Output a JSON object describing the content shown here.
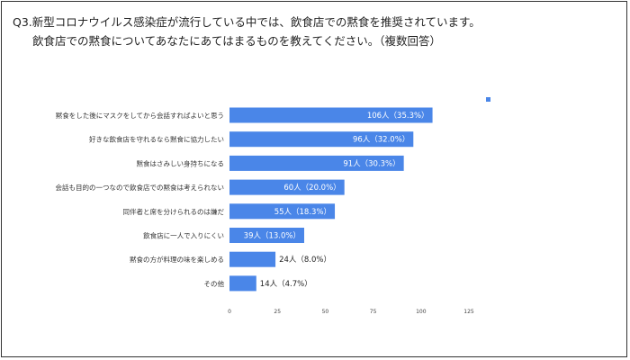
{
  "question": {
    "line1": "Q3.新型コロナウイルス感染症が流行している中では、飲食店での黙食を推奨されています。",
    "line2": "飲食店での黙食についてあなたにあてはまるものを教えてください。（複数回答）"
  },
  "chart_data": {
    "type": "bar",
    "orientation": "horizontal",
    "title": "Q3.新型コロナウイルス感染症が流行している中では、飲食店での黙食を推奨されています。 飲食店での黙食についてあなたにあてはまるものを教えてください。（複数回答）",
    "categories": [
      "黙食をした後にマスクをしてから会話すればよいと思う",
      "好きな飲食店を守れるなら黙食に協力したい",
      "黙食はさみしい身持ちになる",
      "会話も目的の一つなので飲食店での黙食は考えられない",
      "同伴者と席を分けられるのは嫌だ",
      "飲食店に一人で入りにくい",
      "黙食の方が料理の味を楽しめる",
      "その他"
    ],
    "values": [
      106,
      96,
      91,
      60,
      55,
      39,
      24,
      14
    ],
    "data_labels": [
      "106人（35.3%）",
      "96人（32.0%）",
      "91人（30.3%）",
      "60人（20.0%）",
      "55人（18.3%）",
      "39人（13.0%）",
      "24人（8.0%）",
      "14人（4.7%）"
    ],
    "xlim": [
      0,
      125
    ],
    "xticks": [
      0,
      25,
      50,
      75,
      100,
      125
    ],
    "xlabel": "",
    "ylabel": "",
    "grid": false,
    "legend_position": "top-right",
    "bar_color": "#4a86e8"
  }
}
